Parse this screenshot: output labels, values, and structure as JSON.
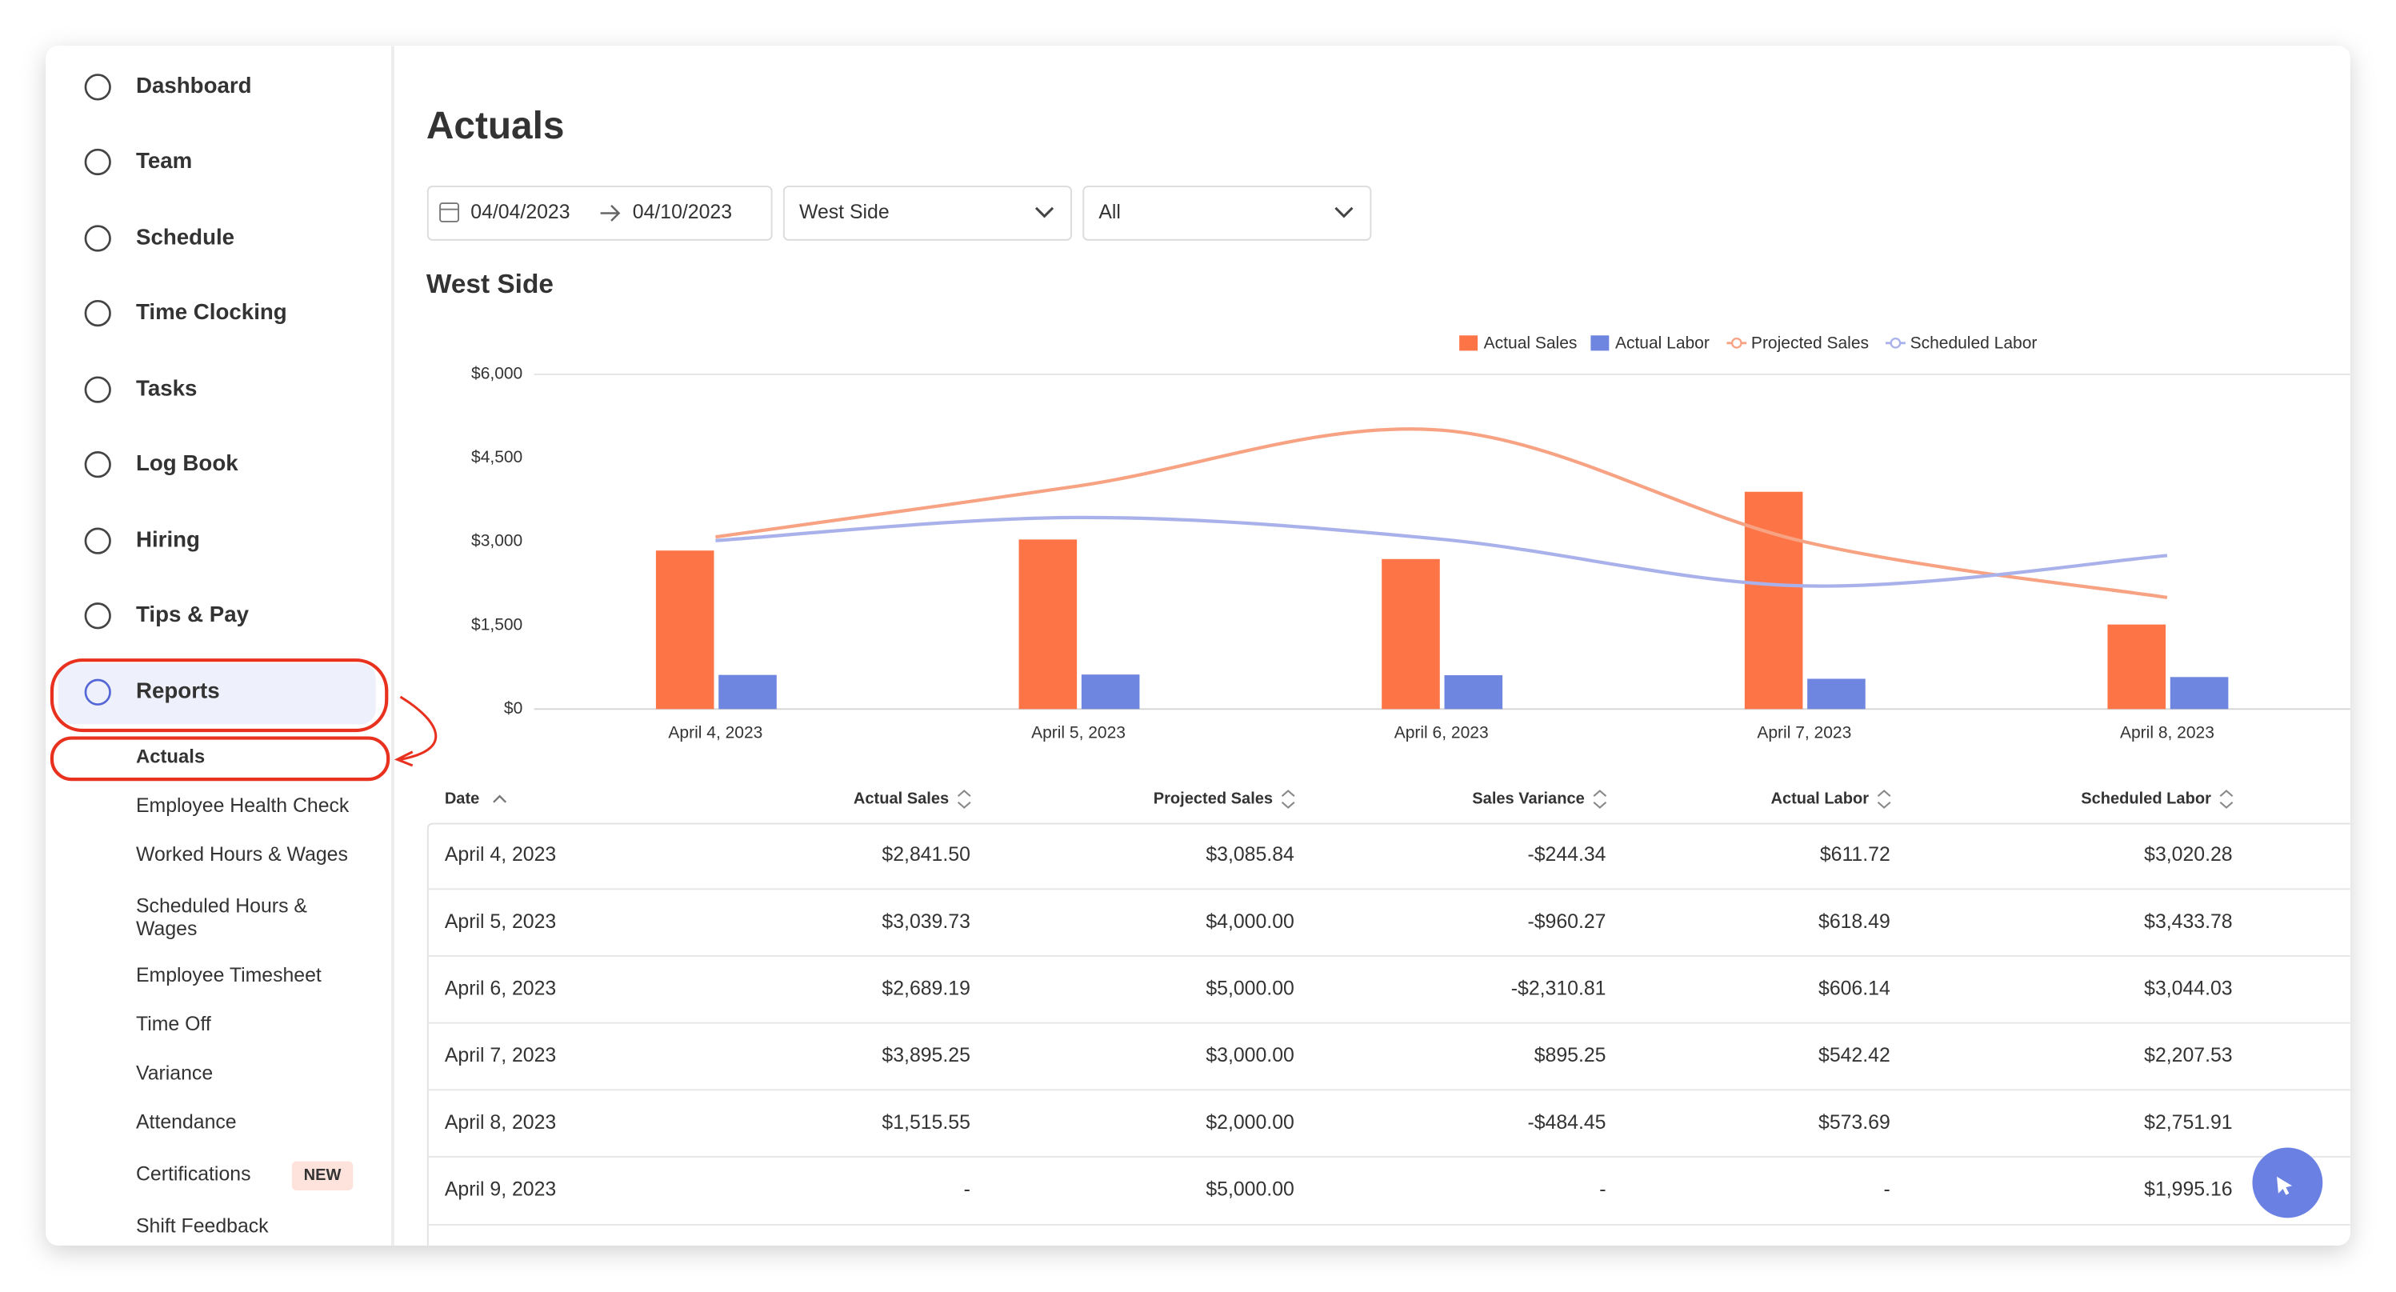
{
  "sidebar": {
    "nav": [
      "Dashboard",
      "Team",
      "Schedule",
      "Time Clocking",
      "Tasks",
      "Log Book",
      "Hiring",
      "Tips & Pay",
      "Reports"
    ],
    "sub": [
      "Actuals",
      "Employee Health Check",
      "Worked Hours & Wages",
      "Scheduled Hours & Wages",
      "Employee Timesheet",
      "Time Off",
      "Variance",
      "Attendance",
      "Certifications",
      "Shift Feedback"
    ],
    "badge": "NEW"
  },
  "page": {
    "title": "Actuals",
    "date_from": "04/04/2023",
    "date_to": "04/10/2023",
    "location": "West Side",
    "filter": "All",
    "section_title": "West Side"
  },
  "chart_data": {
    "type": "bar",
    "categories": [
      "April 4, 2023",
      "April 5, 2023",
      "April 6, 2023",
      "April 7, 2023",
      "April 8, 2023"
    ],
    "series": [
      {
        "name": "Actual Sales",
        "type": "bar",
        "color": "#fd7547",
        "values": [
          2841.5,
          3039.73,
          2689.19,
          3895.25,
          1515.55
        ]
      },
      {
        "name": "Actual Labor",
        "type": "bar",
        "color": "#6f86e0",
        "values": [
          611.72,
          618.49,
          606.14,
          542.42,
          573.69
        ]
      },
      {
        "name": "Projected Sales",
        "type": "line",
        "color": "#f7a383",
        "values": [
          3085.84,
          4000,
          5000,
          3000,
          2000
        ]
      },
      {
        "name": "Scheduled Labor",
        "type": "line",
        "color": "#a9b1ea",
        "values": [
          3020.28,
          3433.78,
          3044.03,
          2207.53,
          2751.91
        ]
      }
    ],
    "ylim": [
      0,
      6000
    ],
    "yticks": [
      {
        "value": 0,
        "label": "$0"
      },
      {
        "value": 1500,
        "label": "$1,500"
      },
      {
        "value": 3000,
        "label": "$3,000"
      },
      {
        "value": 4500,
        "label": "$4,500"
      },
      {
        "value": 6000,
        "label": "$6,000"
      }
    ],
    "grid": false,
    "legend": "top"
  },
  "table": {
    "headers": [
      "Date",
      "Actual Sales",
      "Projected Sales",
      "Sales Variance",
      "Actual Labor",
      "Scheduled Labor"
    ],
    "rows": [
      [
        "April 4, 2023",
        "$2,841.50",
        "$3,085.84",
        "-$244.34",
        "$611.72",
        "$3,020.28"
      ],
      [
        "April 5, 2023",
        "$3,039.73",
        "$4,000.00",
        "-$960.27",
        "$618.49",
        "$3,433.78"
      ],
      [
        "April 6, 2023",
        "$2,689.19",
        "$5,000.00",
        "-$2,310.81",
        "$606.14",
        "$3,044.03"
      ],
      [
        "April 7, 2023",
        "$3,895.25",
        "$3,000.00",
        "$895.25",
        "$542.42",
        "$2,207.53"
      ],
      [
        "April 8, 2023",
        "$1,515.55",
        "$2,000.00",
        "-$484.45",
        "$573.69",
        "$2,751.91"
      ],
      [
        "April 9, 2023",
        "-",
        "$5,000.00",
        "-",
        "-",
        "$1,995.16"
      ]
    ]
  }
}
